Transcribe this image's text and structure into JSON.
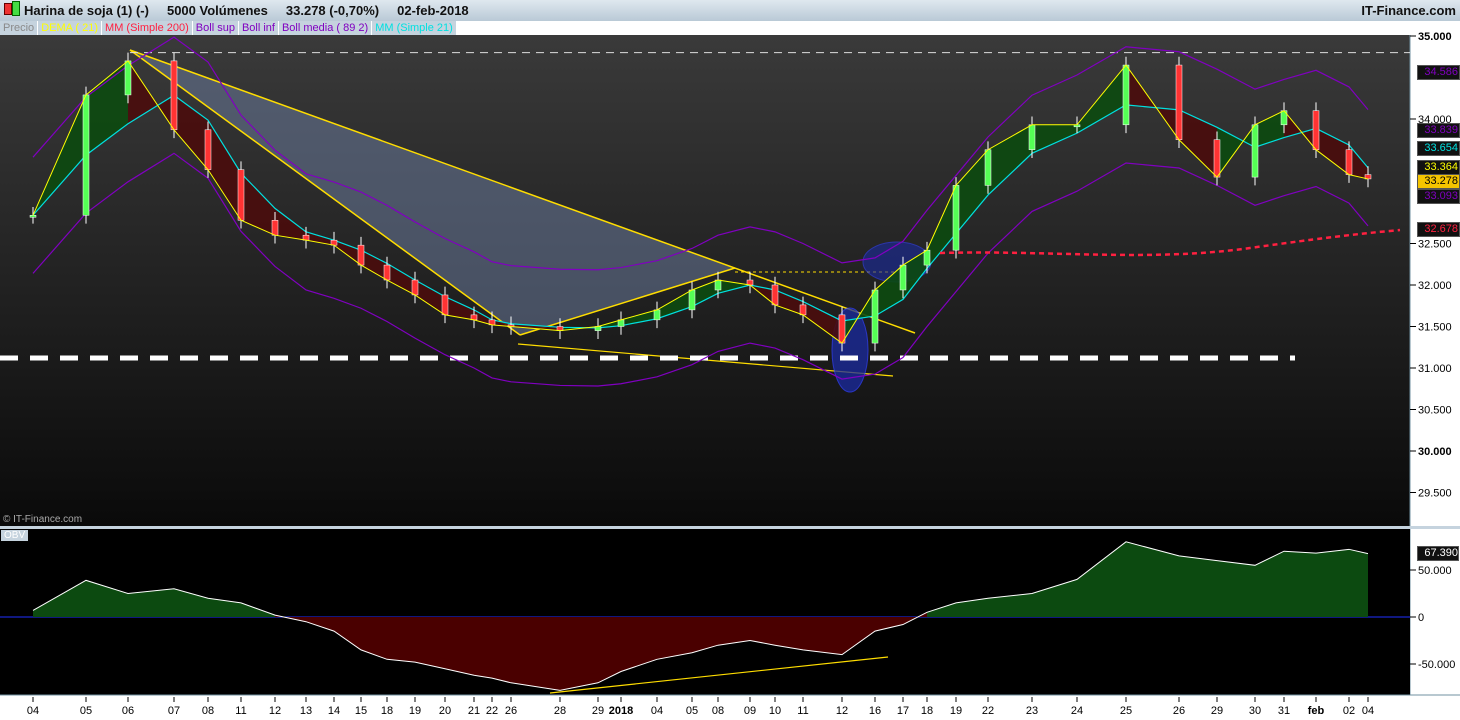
{
  "header": {
    "title": "Harina de soja (1) (-)",
    "volume": "5000 Volúmenes",
    "last": "33.278 (-0,70%)",
    "date": "02-feb-2018",
    "brand": "IT-Finance.com",
    "watermark": "© IT-Finance.com"
  },
  "legend": [
    {
      "label": "Precio",
      "color": "#8a8a8a"
    },
    {
      "label": "DEMA ( 21)",
      "color": "#ffff00"
    },
    {
      "label": "MM (Simple 200)",
      "color": "#ff2040"
    },
    {
      "label": "Boll sup",
      "color": "#8000c0"
    },
    {
      "label": "Boll inf",
      "color": "#8000c0"
    },
    {
      "label": "Boll media ( 89 2)",
      "color": "#8000c0"
    },
    {
      "label": "MM (Simple 21)",
      "color": "#00e0e0"
    }
  ],
  "price_labels": [
    {
      "v": "34.586",
      "color": "#8000c0"
    },
    {
      "v": "33.839",
      "color": "#8000c0"
    },
    {
      "v": "33.654",
      "color": "#00e0e0"
    },
    {
      "v": "33.364",
      "color": "#ffff00"
    },
    {
      "v": "33.278",
      "color": "#000000",
      "bg": "#f5c400"
    },
    {
      "v": "33.093",
      "color": "#8000c0"
    },
    {
      "v": "32.678",
      "color": "#ff2040"
    }
  ],
  "obv": {
    "label": "OBV",
    "last": "67.390"
  },
  "chart_data": [
    {
      "type": "line",
      "x": [
        "04",
        "05",
        "06",
        "07",
        "08",
        "11",
        "12",
        "13",
        "14",
        "15",
        "18",
        "19",
        "20",
        "21",
        "22",
        "26",
        "28",
        "29",
        "2018",
        "04",
        "05",
        "08",
        "09",
        "10",
        "11",
        "12",
        "16",
        "17",
        "18",
        "19",
        "22",
        "23",
        "24",
        "25",
        "26",
        "29",
        "30",
        "31",
        "feb",
        "02",
        "04"
      ],
      "x_bold": [
        "2018",
        "feb"
      ],
      "series": [
        {
          "name": "Precio",
          "values": [
            32.84,
            34.29,
            34.7,
            33.87,
            33.39,
            32.78,
            32.6,
            32.54,
            32.48,
            32.24,
            32.06,
            31.88,
            31.64,
            31.58,
            31.52,
            31.5,
            31.45,
            31.5,
            31.58,
            31.7,
            31.94,
            32.06,
            32.0,
            31.76,
            31.64,
            31.3,
            31.94,
            32.24,
            32.42,
            33.2,
            33.63,
            33.93,
            33.93,
            34.65,
            33.75,
            33.3,
            33.93,
            34.1,
            33.63,
            33.33,
            33.278
          ]
        }
      ],
      "yticks": [
        "35.000",
        "34.000",
        "32.500",
        "32.000",
        "31.500",
        "31.000",
        "30.500",
        "30.000",
        "29.500"
      ],
      "ylim": [
        29.1,
        35.2
      ],
      "hlines": [
        34.8,
        31.12
      ]
    },
    {
      "type": "area",
      "x": [
        "04",
        "05",
        "06",
        "07",
        "08",
        "11",
        "12",
        "13",
        "14",
        "15",
        "18",
        "19",
        "20",
        "21",
        "22",
        "26",
        "28",
        "29",
        "2018",
        "04",
        "05",
        "08",
        "09",
        "10",
        "11",
        "12",
        "16",
        "17",
        "18",
        "19",
        "22",
        "23",
        "24",
        "25",
        "26",
        "29",
        "30",
        "31",
        "feb",
        "02",
        "04"
      ],
      "series": [
        {
          "name": "OBV",
          "values": [
            7000,
            39000,
            25000,
            30000,
            20000,
            15000,
            2000,
            -5000,
            -15000,
            -35000,
            -45000,
            -48000,
            -55000,
            -62000,
            -65000,
            -70000,
            -78000,
            -70000,
            -58000,
            -45000,
            -38000,
            -30000,
            -25000,
            -30000,
            -35000,
            -40000,
            -15000,
            -8000,
            5000,
            15000,
            20000,
            25000,
            40000,
            80000,
            65000,
            60000,
            55000,
            70000,
            68000,
            72000,
            67390
          ]
        }
      ],
      "yticks": [
        "50.000",
        "0",
        "-50.000"
      ],
      "ylim": [
        -90000,
        95000
      ]
    }
  ]
}
